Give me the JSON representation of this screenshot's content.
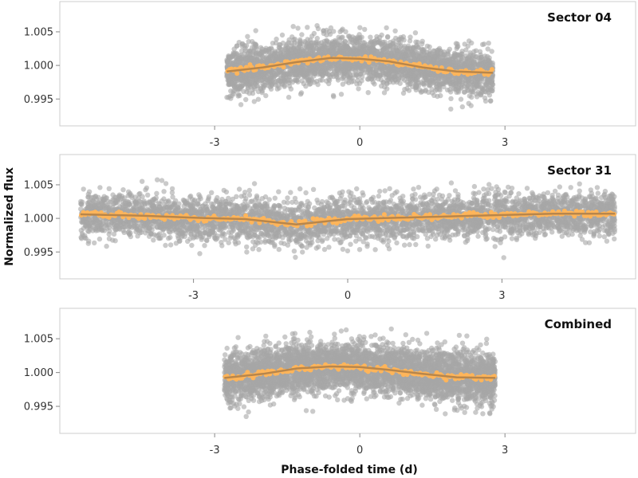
{
  "figure": {
    "ylabel": "Normalized flux",
    "xlabel": "Phase-folded time (d)"
  },
  "colors": {
    "points": "#a6a6a6",
    "binned": "#ffb55a",
    "model": "#b8864b",
    "frame": "#cccccc"
  },
  "chart_data": [
    {
      "type": "scatter",
      "title": "Sector 04",
      "xlim": [
        -6.2,
        5.7
      ],
      "ylim": [
        0.991,
        1.0095
      ],
      "x_ticks": [
        -3,
        0,
        3
      ],
      "x_tick_labels": [
        "-3",
        "0",
        "3"
      ],
      "y_ticks": [
        0.995,
        1.0,
        1.005
      ],
      "y_tick_labels": [
        "0.995",
        "1.000",
        "1.005"
      ],
      "x_range_data": [
        -2.75,
        2.75
      ],
      "scatter_sigma": 0.0017,
      "n_points": 3500,
      "model": {
        "x": [
          -2.75,
          -2.0,
          -1.3,
          -0.6,
          0.0,
          0.6,
          1.3,
          2.0,
          2.75
        ],
        "y": [
          0.9991,
          0.9997,
          1.0005,
          1.0011,
          1.001,
          1.0006,
          0.9997,
          0.9991,
          0.9989
        ]
      }
    },
    {
      "type": "scatter",
      "title": "Sector 31",
      "xlim": [
        -5.6,
        5.6
      ],
      "ylim": [
        0.991,
        1.0095
      ],
      "x_ticks": [
        -3,
        0,
        3
      ],
      "x_tick_labels": [
        "-3",
        "0",
        "3"
      ],
      "y_ticks": [
        0.995,
        1.0,
        1.005
      ],
      "y_tick_labels": [
        "0.995",
        "1.000",
        "1.005"
      ],
      "x_range_data": [
        -5.2,
        5.2
      ],
      "scatter_sigma": 0.0016,
      "n_points": 4500,
      "model": {
        "x": [
          -5.2,
          -4.0,
          -3.0,
          -2.0,
          -1.0,
          0.0,
          1.0,
          2.0,
          3.0,
          4.0,
          5.2
        ],
        "y": [
          1.0006,
          1.0004,
          1.0001,
          0.9999,
          0.9991,
          0.9999,
          1.0001,
          1.0003,
          1.0005,
          1.0007,
          1.0007
        ]
      }
    },
    {
      "type": "scatter",
      "title": "Combined",
      "xlim": [
        -6.2,
        5.7
      ],
      "ylim": [
        0.991,
        1.0095
      ],
      "x_ticks": [
        -3,
        0,
        3
      ],
      "x_tick_labels": [
        "-3",
        "0",
        "3"
      ],
      "y_ticks": [
        0.995,
        1.0,
        1.005
      ],
      "y_tick_labels": [
        "0.995",
        "1.000",
        "1.005"
      ],
      "x_range_data": [
        -2.8,
        2.8
      ],
      "scatter_sigma": 0.0018,
      "n_points": 4500,
      "model": {
        "x": [
          -2.8,
          -2.0,
          -1.3,
          -0.6,
          0.0,
          0.6,
          1.3,
          2.0,
          2.8
        ],
        "y": [
          0.9992,
          0.9998,
          1.0006,
          1.0009,
          1.0008,
          1.0004,
          0.9998,
          0.9993,
          0.9992
        ]
      }
    }
  ]
}
